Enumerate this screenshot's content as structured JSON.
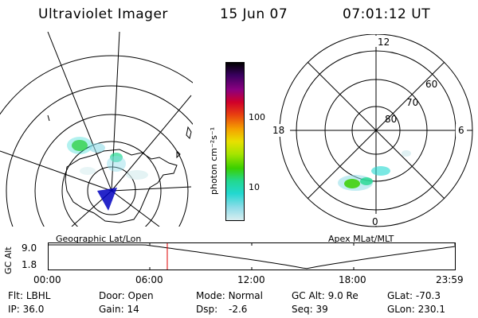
{
  "header": {
    "instrument": "Ultraviolet Imager",
    "date": "15 Jun 07",
    "time": "07:01:12 UT"
  },
  "geo_panel": {
    "label": "Geographic Lat/Lon"
  },
  "polar_panel": {
    "label": "Apex MLat/MLT",
    "mlt_labels": {
      "top": "12",
      "right": "6",
      "bottom": "0",
      "left": "18"
    },
    "lat_labels": [
      "60",
      "70",
      "80"
    ]
  },
  "colorbar": {
    "unit_label": "photon cm⁻²s⁻¹",
    "ticks": [
      "100",
      "10"
    ],
    "colors": [
      "#000000",
      "#3a0060",
      "#8a0080",
      "#d0002a",
      "#e84010",
      "#f5a000",
      "#e8e000",
      "#a6e400",
      "#3ad000",
      "#22d890",
      "#22d8d0",
      "#8fdce8",
      "#d8eef0"
    ]
  },
  "altitude_plot": {
    "ylabel": "GC Alt",
    "yticks": [
      "9.0",
      "1.8"
    ],
    "xticks": [
      "00:00",
      "06:00",
      "12:00",
      "18:00",
      "23:59"
    ],
    "current_time_hours": 7.02,
    "min_time_hours": 15.2,
    "marker_color": "#e00000"
  },
  "info": {
    "flt_label": "Flt:",
    "flt_value": "LBHL",
    "ip_label": "IP:",
    "ip_value": "36.0",
    "door_label": "Door:",
    "door_value": "Open",
    "gain_label": "Gain:",
    "gain_value": "14",
    "mode_label": "Mode:",
    "mode_value": "Normal",
    "dsp_label": "Dsp:",
    "dsp_value": "-2.6",
    "gcalt_label": "GC Alt:",
    "gcalt_value": "9.0 Re",
    "seq_label": "Seq:",
    "seq_value": "39",
    "glat_label": "GLat:",
    "glat_value": "-70.3",
    "glon_label": "GLon:",
    "glon_value": "230.1"
  }
}
